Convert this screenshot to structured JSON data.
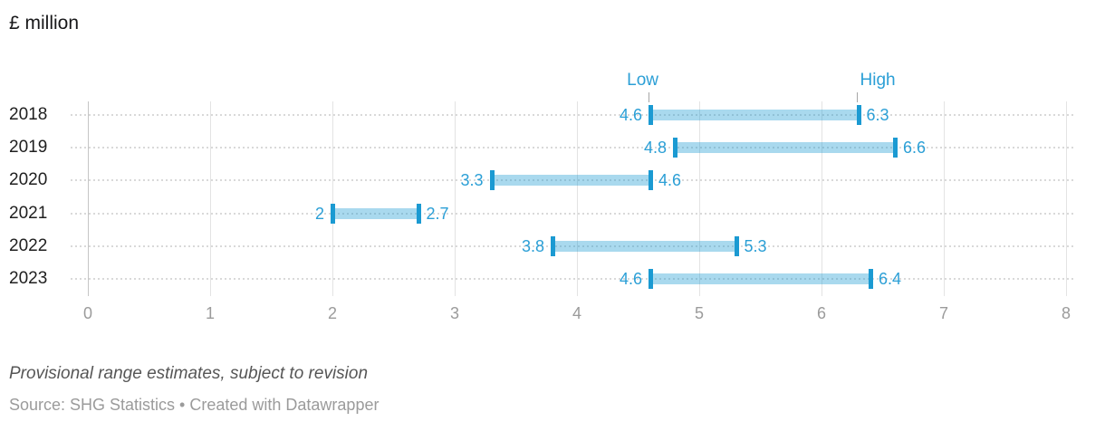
{
  "title": "£ million",
  "chart_data": {
    "type": "bar",
    "subtype": "horizontal-range",
    "title": "£ million",
    "categories": [
      "2018",
      "2019",
      "2020",
      "2021",
      "2022",
      "2023"
    ],
    "series": [
      {
        "name": "Low",
        "values": [
          4.6,
          4.8,
          3.3,
          2,
          3.8,
          4.6
        ]
      },
      {
        "name": "High",
        "values": [
          6.3,
          6.6,
          4.6,
          2.7,
          5.3,
          6.4
        ]
      }
    ],
    "value_labels": {
      "low": [
        "4.6",
        "4.8",
        "3.3",
        "2",
        "3.8",
        "4.6"
      ],
      "high": [
        "6.3",
        "6.6",
        "4.6",
        "2.7",
        "5.3",
        "6.4"
      ]
    },
    "annotations": {
      "low": "Low",
      "high": "High"
    },
    "xlabel": "",
    "ylabel": "",
    "xlim": [
      0,
      8
    ],
    "x_ticks": [
      0,
      1,
      2,
      3,
      4,
      5,
      6,
      7,
      8
    ],
    "grid": true,
    "legend_position": "none",
    "colors": {
      "bar_fill": "#a7d6ea",
      "bar_cap": "#1b9ad2",
      "value_label": "#2b9fd6",
      "gridline": "#e3e3e3",
      "zero_gridline": "#c5c5c5"
    }
  },
  "footer": {
    "notes": "Provisional range estimates, subject to revision",
    "source": "Source: SHG Statistics • Created with Datawrapper"
  }
}
